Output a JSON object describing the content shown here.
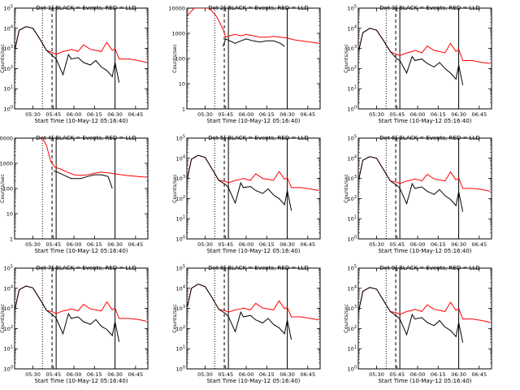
{
  "xlabel": "Start Time (10-May-12 05:16:40)",
  "ylabel": "Counts/sec",
  "xtick_labels": [
    "05:30",
    "05:45",
    "06:00",
    "06:15",
    "06:30",
    "06:45"
  ],
  "colors": {
    "events": "#000000",
    "lld": "#ff0000",
    "axes": "#000000",
    "background": "#ffffff"
  },
  "chart_data": [
    {
      "type": "line",
      "title": "Det 1f BLACK = Events, RED = LLD",
      "yscale": "log",
      "ylim": [
        1,
        100000
      ],
      "ytick_labels": [
        "10^0",
        "10^1",
        "10^2",
        "10^3",
        "10^4",
        "10^5"
      ],
      "xlim": [
        "05:16:40",
        "06:54:00"
      ],
      "series": [
        {
          "name": "Events",
          "x": [
            "05:17",
            "05:20",
            "05:25",
            "05:30",
            "05:35",
            "05:40",
            "05:45",
            "05:47",
            "05:52",
            "05:56",
            "05:58",
            "06:03",
            "06:07",
            "06:12",
            "06:16",
            "06:20",
            "06:24",
            "06:28",
            "06:30",
            "06:33"
          ],
          "values": [
            1000,
            8000,
            12000,
            10000,
            3000,
            800,
            400,
            300,
            50,
            500,
            300,
            350,
            200,
            150,
            250,
            120,
            80,
            40,
            200,
            20
          ]
        },
        {
          "name": "LLD",
          "x": [
            "05:17",
            "05:20",
            "05:25",
            "05:30",
            "05:35",
            "05:40",
            "05:45",
            "05:47",
            "05:52",
            "05:56",
            "05:58",
            "06:03",
            "06:07",
            "06:12",
            "06:16",
            "06:20",
            "06:24",
            "06:28",
            "06:30",
            "06:33",
            "06:40",
            "06:47",
            "06:53"
          ],
          "values": [
            1000,
            8000,
            12000,
            10000,
            3000,
            800,
            600,
            500,
            700,
            800,
            900,
            700,
            1500,
            900,
            800,
            700,
            2000,
            800,
            1000,
            300,
            300,
            250,
            200
          ]
        }
      ]
    },
    {
      "type": "line",
      "title": "Det 2f BLACK = Events, RED = LLD",
      "yscale": "log",
      "ylim": [
        1,
        10000
      ],
      "ytick_labels": [
        "1",
        "10",
        "100",
        "1000",
        "10000"
      ],
      "xlim": [
        "05:16:40",
        "06:54:00"
      ],
      "series": [
        {
          "name": "Events",
          "x": [
            "05:43",
            "05:45",
            "05:48",
            "05:52",
            "05:56",
            "06:00",
            "06:05",
            "06:10",
            "06:15",
            "06:20",
            "06:25",
            "06:28"
          ],
          "values": [
            300,
            600,
            500,
            400,
            500,
            600,
            500,
            450,
            500,
            500,
            400,
            300
          ]
        },
        {
          "name": "LLD",
          "x": [
            "05:17",
            "05:22",
            "05:28",
            "05:33",
            "05:38",
            "05:43",
            "05:45",
            "05:48",
            "05:52",
            "05:56",
            "06:00",
            "06:05",
            "06:10",
            "06:15",
            "06:20",
            "06:25",
            "06:30",
            "06:35",
            "06:40",
            "06:47",
            "06:53"
          ],
          "values": [
            5000,
            10000,
            10000,
            10000,
            5000,
            1500,
            700,
            800,
            900,
            800,
            900,
            800,
            700,
            700,
            750,
            700,
            650,
            550,
            500,
            450,
            400
          ]
        }
      ]
    },
    {
      "type": "line",
      "title": "Det 3f BLACK = Events, RED = LLD",
      "yscale": "log",
      "ylim": [
        1,
        100000
      ],
      "ytick_labels": [
        "10^0",
        "10^1",
        "10^2",
        "10^3",
        "10^4",
        "10^5"
      ],
      "xlim": [
        "05:16:40",
        "06:54:00"
      ],
      "series": [
        {
          "name": "Events",
          "x": [
            "05:17",
            "05:20",
            "05:25",
            "05:30",
            "05:35",
            "05:40",
            "05:45",
            "05:47",
            "05:52",
            "05:56",
            "05:58",
            "06:03",
            "06:07",
            "06:12",
            "06:16",
            "06:20",
            "06:24",
            "06:28",
            "06:30",
            "06:33"
          ],
          "values": [
            800,
            6000,
            10000,
            8000,
            2500,
            700,
            300,
            250,
            60,
            400,
            250,
            300,
            180,
            120,
            200,
            100,
            60,
            30,
            150,
            15
          ]
        },
        {
          "name": "LLD",
          "x": [
            "05:17",
            "05:20",
            "05:25",
            "05:30",
            "05:35",
            "05:40",
            "05:45",
            "05:47",
            "05:52",
            "05:56",
            "05:58",
            "06:03",
            "06:07",
            "06:12",
            "06:16",
            "06:20",
            "06:24",
            "06:28",
            "06:30",
            "06:33",
            "06:40",
            "06:47",
            "06:53"
          ],
          "values": [
            800,
            6000,
            10000,
            8000,
            2500,
            700,
            500,
            450,
            600,
            700,
            800,
            600,
            1300,
            800,
            700,
            600,
            1800,
            700,
            900,
            250,
            250,
            200,
            180
          ]
        }
      ]
    },
    {
      "type": "line",
      "title": "Det 4f BLACK = Events, RED = LLD",
      "yscale": "log",
      "ylim": [
        1,
        10000
      ],
      "ytick_labels": [
        "1",
        "10",
        "100",
        "1000",
        "10000"
      ],
      "xlim": [
        "05:16:40",
        "06:54:00"
      ],
      "series": [
        {
          "name": "Events",
          "x": [
            "05:45",
            "05:48",
            "05:52",
            "05:58",
            "06:05",
            "06:10",
            "06:15",
            "06:20",
            "06:25",
            "06:28"
          ],
          "values": [
            500,
            450,
            350,
            250,
            250,
            300,
            350,
            350,
            300,
            100
          ]
        },
        {
          "name": "LLD",
          "x": [
            "05:37",
            "05:40",
            "05:43",
            "05:46",
            "05:50",
            "05:55",
            "06:00",
            "06:05",
            "06:10",
            "06:15",
            "06:20",
            "06:25",
            "06:30",
            "06:35",
            "06:40",
            "06:47",
            "06:53"
          ],
          "values": [
            10000,
            5000,
            1200,
            700,
            600,
            450,
            350,
            330,
            350,
            400,
            450,
            420,
            380,
            350,
            320,
            300,
            280
          ]
        }
      ]
    },
    {
      "type": "line",
      "title": "Det 5f BLACK = Events, RED = LLD",
      "yscale": "log",
      "ylim": [
        1,
        100000
      ],
      "ytick_labels": [
        "10^0",
        "10^1",
        "10^2",
        "10^3",
        "10^4",
        "10^5"
      ],
      "xlim": [
        "05:16:40",
        "06:54:00"
      ],
      "series": [
        {
          "name": "Events",
          "x": [
            "05:17",
            "05:20",
            "05:25",
            "05:30",
            "05:35",
            "05:40",
            "05:45",
            "05:47",
            "05:52",
            "05:56",
            "05:58",
            "06:03",
            "06:07",
            "06:12",
            "06:16",
            "06:20",
            "06:24",
            "06:28",
            "06:30",
            "06:33"
          ],
          "values": [
            1000,
            9000,
            14000,
            11000,
            3000,
            800,
            500,
            350,
            60,
            600,
            350,
            400,
            250,
            180,
            300,
            150,
            100,
            50,
            250,
            25
          ]
        },
        {
          "name": "LLD",
          "x": [
            "05:17",
            "05:20",
            "05:25",
            "05:30",
            "05:35",
            "05:40",
            "05:45",
            "05:47",
            "05:52",
            "05:56",
            "05:58",
            "06:03",
            "06:07",
            "06:12",
            "06:16",
            "06:20",
            "06:24",
            "06:28",
            "06:30",
            "06:33",
            "06:40",
            "06:47",
            "06:53"
          ],
          "values": [
            1000,
            9000,
            14000,
            11000,
            3000,
            800,
            700,
            600,
            800,
            900,
            1000,
            800,
            1700,
            1000,
            900,
            800,
            2200,
            900,
            1100,
            350,
            350,
            300,
            250
          ]
        }
      ]
    },
    {
      "type": "line",
      "title": "Det 6f BLACK = Events, RED = LLD",
      "yscale": "log",
      "ylim": [
        1,
        100000
      ],
      "ytick_labels": [
        "10^0",
        "10^1",
        "10^2",
        "10^3",
        "10^4",
        "10^5"
      ],
      "xlim": [
        "05:16:40",
        "06:54:00"
      ],
      "series": [
        {
          "name": "Events",
          "x": [
            "05:17",
            "05:20",
            "05:25",
            "05:30",
            "05:35",
            "05:40",
            "05:45",
            "05:47",
            "05:52",
            "05:56",
            "05:58",
            "06:03",
            "06:07",
            "06:12",
            "06:16",
            "06:20",
            "06:24",
            "06:28",
            "06:30",
            "06:33"
          ],
          "values": [
            900,
            8000,
            12000,
            10000,
            2800,
            750,
            450,
            320,
            55,
            550,
            320,
            380,
            230,
            160,
            280,
            140,
            90,
            45,
            220,
            22
          ]
        },
        {
          "name": "LLD",
          "x": [
            "05:17",
            "05:20",
            "05:25",
            "05:30",
            "05:35",
            "05:40",
            "05:45",
            "05:47",
            "05:52",
            "05:56",
            "05:58",
            "06:03",
            "06:07",
            "06:12",
            "06:16",
            "06:20",
            "06:24",
            "06:28",
            "06:30",
            "06:33",
            "06:40",
            "06:47",
            "06:53"
          ],
          "values": [
            900,
            8000,
            12000,
            10000,
            2800,
            750,
            650,
            550,
            750,
            850,
            950,
            750,
            1600,
            950,
            850,
            750,
            2100,
            850,
            1050,
            320,
            320,
            280,
            230
          ]
        }
      ]
    },
    {
      "type": "line",
      "title": "Det 7f BLACK = Events, RED = LLD",
      "yscale": "log",
      "ylim": [
        1,
        100000
      ],
      "ytick_labels": [
        "10^0",
        "10^1",
        "10^2",
        "10^3",
        "10^4",
        "10^5"
      ],
      "xlim": [
        "05:16:40",
        "06:54:00"
      ],
      "series": [
        {
          "name": "Events",
          "x": [
            "05:17",
            "05:20",
            "05:25",
            "05:30",
            "05:35",
            "05:40",
            "05:45",
            "05:47",
            "05:52",
            "05:56",
            "05:58",
            "06:03",
            "06:07",
            "06:12",
            "06:16",
            "06:20",
            "06:24",
            "06:28",
            "06:30",
            "06:33"
          ],
          "values": [
            1000,
            8500,
            13000,
            10500,
            3000,
            800,
            450,
            330,
            55,
            550,
            320,
            380,
            220,
            160,
            280,
            130,
            90,
            45,
            220,
            22
          ]
        },
        {
          "name": "LLD",
          "x": [
            "05:17",
            "05:20",
            "05:25",
            "05:30",
            "05:35",
            "05:40",
            "05:45",
            "05:47",
            "05:52",
            "05:56",
            "05:58",
            "06:03",
            "06:07",
            "06:12",
            "06:16",
            "06:20",
            "06:24",
            "06:28",
            "06:30",
            "06:33",
            "06:40",
            "06:47",
            "06:53"
          ],
          "values": [
            1000,
            8500,
            13000,
            10500,
            3000,
            800,
            650,
            550,
            750,
            850,
            950,
            750,
            1600,
            950,
            850,
            750,
            2100,
            850,
            1050,
            320,
            320,
            280,
            230
          ]
        }
      ]
    },
    {
      "type": "line",
      "title": "Det 8f BLACK = Events, RED = LLD",
      "yscale": "log",
      "ylim": [
        1,
        100000
      ],
      "ytick_labels": [
        "10^0",
        "10^1",
        "10^2",
        "10^3",
        "10^4",
        "10^5"
      ],
      "xlim": [
        "05:16:40",
        "06:54:00"
      ],
      "series": [
        {
          "name": "Events",
          "x": [
            "05:17",
            "05:20",
            "05:25",
            "05:30",
            "05:35",
            "05:40",
            "05:45",
            "05:47",
            "05:52",
            "05:56",
            "05:58",
            "06:03",
            "06:07",
            "06:12",
            "06:16",
            "06:20",
            "06:24",
            "06:28",
            "06:30",
            "06:33"
          ],
          "values": [
            1200,
            10000,
            16000,
            12000,
            3500,
            900,
            550,
            400,
            70,
            650,
            380,
            450,
            270,
            190,
            320,
            160,
            110,
            55,
            270,
            28
          ]
        },
        {
          "name": "LLD",
          "x": [
            "05:17",
            "05:20",
            "05:25",
            "05:30",
            "05:35",
            "05:40",
            "05:45",
            "05:47",
            "05:52",
            "05:56",
            "05:58",
            "06:03",
            "06:07",
            "06:12",
            "06:16",
            "06:20",
            "06:24",
            "06:28",
            "06:30",
            "06:33",
            "06:40",
            "06:47",
            "06:53"
          ],
          "values": [
            1200,
            10000,
            16000,
            12000,
            3500,
            900,
            750,
            650,
            850,
            950,
            1050,
            850,
            1800,
            1050,
            950,
            850,
            2400,
            950,
            1150,
            380,
            380,
            320,
            270
          ]
        }
      ]
    },
    {
      "type": "line",
      "title": "Det 9f BLACK = Events, RED = LLD",
      "yscale": "log",
      "ylim": [
        1,
        100000
      ],
      "ytick_labels": [
        "10^0",
        "10^1",
        "10^2",
        "10^3",
        "10^4",
        "10^5"
      ],
      "xlim": [
        "05:16:40",
        "06:54:00"
      ],
      "series": [
        {
          "name": "Events",
          "x": [
            "05:17",
            "05:20",
            "05:25",
            "05:30",
            "05:35",
            "05:40",
            "05:45",
            "05:47",
            "05:52",
            "05:56",
            "05:58",
            "06:03",
            "06:07",
            "06:12",
            "06:16",
            "06:20",
            "06:24",
            "06:28",
            "06:30",
            "06:33"
          ],
          "values": [
            800,
            7000,
            11000,
            9000,
            2500,
            700,
            400,
            300,
            50,
            500,
            300,
            350,
            200,
            140,
            250,
            120,
            80,
            40,
            200,
            20
          ]
        },
        {
          "name": "LLD",
          "x": [
            "05:17",
            "05:20",
            "05:25",
            "05:30",
            "05:35",
            "05:40",
            "05:45",
            "05:47",
            "05:52",
            "05:56",
            "05:58",
            "06:03",
            "06:07",
            "06:12",
            "06:16",
            "06:20",
            "06:24",
            "06:28",
            "06:30",
            "06:33",
            "06:40",
            "06:47",
            "06:53"
          ],
          "values": [
            800,
            7000,
            11000,
            9000,
            2500,
            700,
            600,
            500,
            700,
            800,
            900,
            700,
            1500,
            900,
            800,
            700,
            2000,
            800,
            1000,
            300,
            300,
            250,
            200
          ]
        }
      ]
    }
  ]
}
